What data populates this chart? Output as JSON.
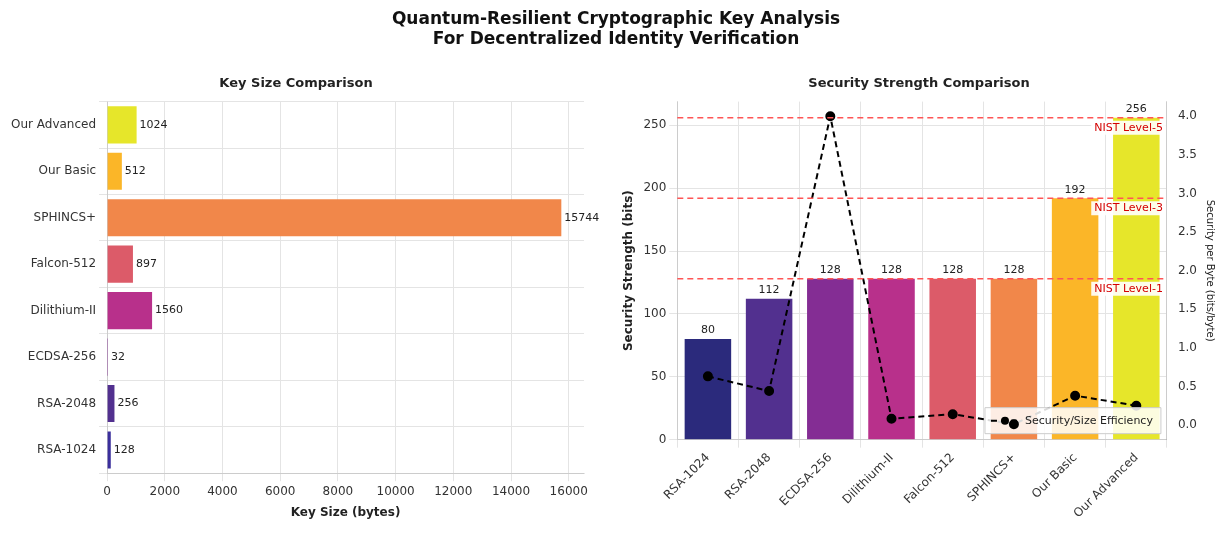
{
  "chart_data": [
    {
      "type": "other",
      "title": "Quantum-Resilient Cryptographic Key Analysis\nFor Decentralized Identity Verification"
    },
    {
      "type": "bar",
      "orientation": "horizontal",
      "title": "Key Size Comparison",
      "xlabel": "Key Size (bytes)",
      "categories": [
        "Our Advanced",
        "Our Basic",
        "SPHINCS+",
        "Falcon-512",
        "Dilithium-II",
        "ECDSA-256",
        "RSA-2048",
        "RSA-1024"
      ],
      "values": [
        1024,
        512,
        15744,
        897,
        1560,
        32,
        256,
        128
      ],
      "colors": [
        "#e6e62a",
        "#fbb628",
        "#f1874a",
        "#dc5b69",
        "#b8308b",
        "#842d94",
        "#52308f",
        "#3b2f9c"
      ],
      "xlim": [
        0,
        16530
      ],
      "xticks": [
        0,
        2000,
        4000,
        6000,
        8000,
        10000,
        12000,
        14000,
        16000
      ],
      "grid": true,
      "data_labels": true
    },
    {
      "type": "bar",
      "title": "Security Strength Comparison",
      "ylabel": "Security Strength (bits)",
      "y2label": "Security per Byte (bits/byte)",
      "categories": [
        "RSA-1024",
        "RSA-2048",
        "ECDSA-256",
        "Dilithium-II",
        "Falcon-512",
        "SPHINCS+",
        "Our Basic",
        "Our Advanced"
      ],
      "ylim": [
        0,
        268.8
      ],
      "yticks": [
        0,
        50,
        100,
        150,
        200,
        250
      ],
      "y2lim": [
        -0.19,
        4.19
      ],
      "y2ticks": [
        {
          "value": 0,
          "label": "0.0"
        },
        0.5,
        {
          "value": 1,
          "label": "1.0"
        },
        1.5,
        {
          "value": 2,
          "label": "2.0"
        },
        2.5,
        {
          "value": 3,
          "label": "3.0"
        },
        3.5,
        {
          "value": 4,
          "label": "4.0"
        }
      ],
      "grid": true,
      "legend": "bottom right",
      "series": [
        {
          "type": "bar",
          "colors": [
            "#2b2a7c",
            "#52308f",
            "#842d94",
            "#b8308b",
            "#dc5b69",
            "#f1874a",
            "#fbb628",
            "#e6e62a"
          ],
          "values": [
            80,
            112,
            128,
            128,
            128,
            128,
            192,
            256
          ],
          "value_labels": [
            "80",
            "112",
            "128",
            "128",
            "128",
            "128",
            "192",
            "256"
          ]
        },
        {
          "type": "line",
          "name": "Security/Size Efficiency",
          "color": "#000000",
          "axis": "y2",
          "marker": "circle",
          "line_style": "dashed",
          "values": [
            0.63,
            0.44,
            4,
            0.08,
            0.14,
            0.01,
            0.38,
            0.25
          ]
        }
      ],
      "ref_lines": [
        {
          "axis": "y",
          "value": 128,
          "label": "NIST Level-1",
          "color": "#ff5555",
          "line_style": "dashed"
        },
        {
          "axis": "y",
          "value": 192,
          "label": "NIST Level-3",
          "color": "#ff5555",
          "line_style": "dashed"
        },
        {
          "axis": "y",
          "value": 256,
          "label": "NIST Level-5",
          "color": "#ff5555",
          "line_style": "dashed"
        }
      ]
    }
  ]
}
